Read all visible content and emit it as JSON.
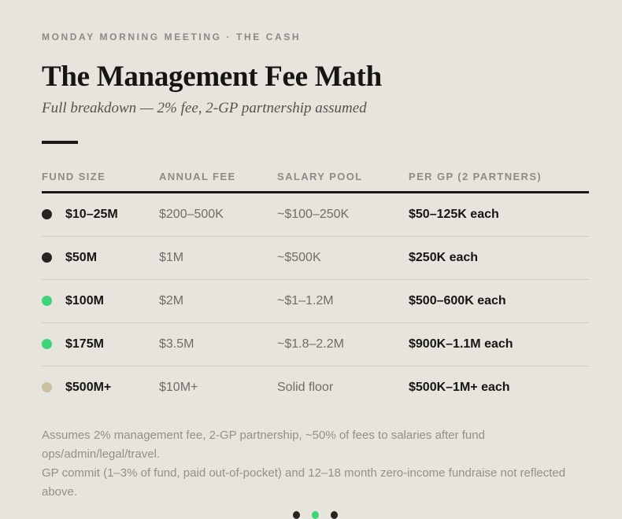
{
  "header": {
    "eyebrow": "MONDAY MORNING MEETING · THE CASH",
    "title": "The Management Fee Math",
    "subtitle": "Full breakdown — 2% fee, 2-GP partnership assumed"
  },
  "table": {
    "columns": [
      "FUND SIZE",
      "ANNUAL FEE",
      "SALARY POOL",
      "PER GP (2 PARTNERS)"
    ],
    "rows": [
      {
        "dot_color": "#27251f",
        "fund_size": "$10–25M",
        "annual_fee": "$200–500K",
        "salary_pool": "~$100–250K",
        "per_gp": "$50–125K each"
      },
      {
        "dot_color": "#27251f",
        "fund_size": "$50M",
        "annual_fee": "$1M",
        "salary_pool": "~$500K",
        "per_gp": "$250K each"
      },
      {
        "dot_color": "#3dd578",
        "fund_size": "$100M",
        "annual_fee": "$2M",
        "salary_pool": "~$1–1.2M",
        "per_gp": "$500–600K each"
      },
      {
        "dot_color": "#3dd578",
        "fund_size": "$175M",
        "annual_fee": "$3.5M",
        "salary_pool": "~$1.8–2.2M",
        "per_gp": "$900K–1.1M each"
      },
      {
        "dot_color": "#cbc0a1",
        "fund_size": "$500M+",
        "annual_fee": "$10M+",
        "salary_pool": "Solid floor",
        "per_gp": "$500K–1M+ each"
      }
    ]
  },
  "footnote": {
    "line1": "Assumes 2% management fee, 2-GP partnership, ~50% of fees to salaries after fund ops/admin/legal/travel.",
    "line2": "GP commit (1–3% of fund, paid out-of-pocket) and 12–18 month zero-income fundraise not reflected above."
  },
  "pagination": {
    "dots": [
      {
        "color": "#27251f",
        "active": false
      },
      {
        "color": "#3dd578",
        "active": true
      },
      {
        "color": "#27251f",
        "active": false
      }
    ]
  },
  "colors": {
    "background": "#e6e4dd",
    "ink": "#171512",
    "muted_text": "#6f6d67",
    "header_gray": "#8d8b85",
    "divider": "#cdcac2",
    "accent_green": "#3dd578",
    "tan": "#cbc0a1"
  }
}
